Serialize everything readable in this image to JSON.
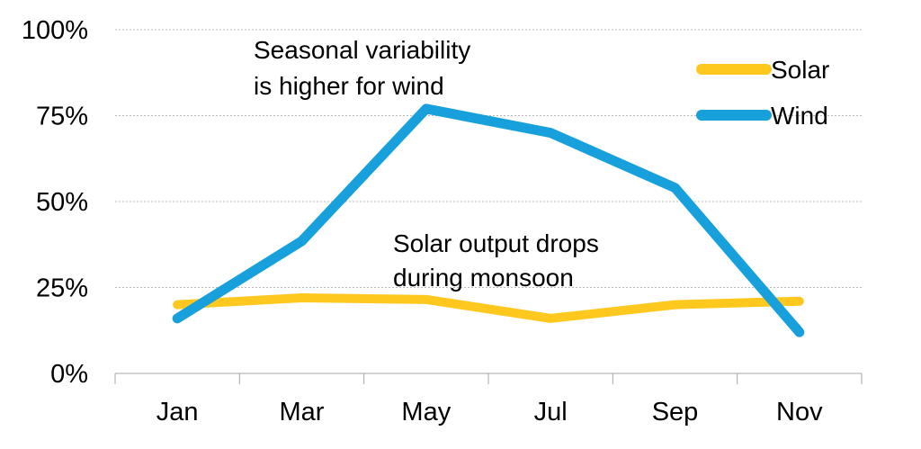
{
  "chart_data": {
    "type": "line",
    "categories": [
      "Jan",
      "Mar",
      "May",
      "Jul",
      "Sep",
      "Nov"
    ],
    "ylim": [
      0,
      100
    ],
    "y_ticks": [
      "0%",
      "25%",
      "50%",
      "75%",
      "100%"
    ],
    "grid": true,
    "legend_position": "top-right",
    "series": [
      {
        "name": "Solar",
        "color": "#FFC81E",
        "values": [
          20,
          22,
          21.5,
          16,
          20,
          21
        ]
      },
      {
        "name": "Wind",
        "color": "#17A0DB",
        "values": [
          16,
          38.5,
          77,
          70,
          54,
          12
        ]
      }
    ],
    "annotations": [
      {
        "lines": [
          "Seasonal variability",
          "is higher for wind"
        ]
      },
      {
        "lines": [
          "Solar output drops",
          "during monsoon"
        ]
      }
    ]
  }
}
